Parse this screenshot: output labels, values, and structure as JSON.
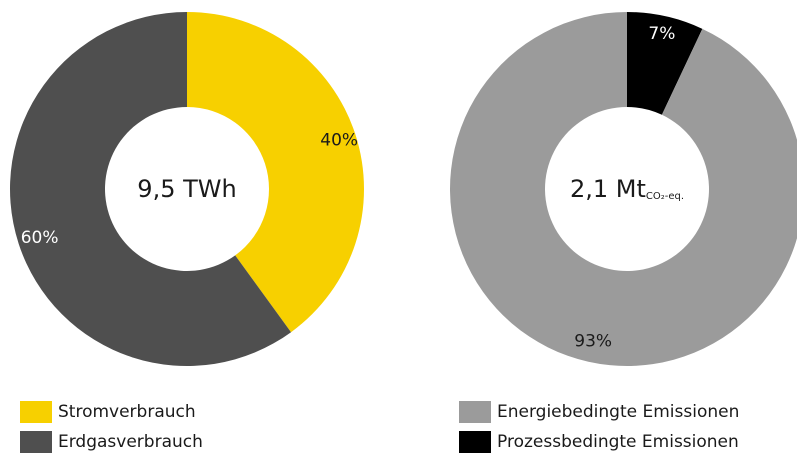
{
  "chart_data": [
    {
      "type": "pie",
      "style": "donut",
      "center_label": {
        "value": "9,5",
        "unit": "TWh"
      },
      "slices": [
        {
          "label": "Stromverbrauch",
          "value": 40,
          "value_label": "40%",
          "color": "#F7D000",
          "label_color": "#1a1a1a"
        },
        {
          "label": "Erdgasverbrauch",
          "value": 60,
          "value_label": "60%",
          "color": "#4F4F4F",
          "label_color": "#ffffff"
        }
      ],
      "legend": "bottom-left"
    },
    {
      "type": "pie",
      "style": "donut",
      "center_label": {
        "value": "2,1",
        "unit": "Mt",
        "unit_sub": "CO₂-eq."
      },
      "slices": [
        {
          "label": "Prozessbedingte Emissionen",
          "value": 7,
          "value_label": "7%",
          "color": "#000000",
          "label_color": "#ffffff"
        },
        {
          "label": "Energiebedingte Emissionen",
          "value": 93,
          "value_label": "93%",
          "color": "#9B9B9B",
          "label_color": "#1a1a1a"
        }
      ],
      "legend": "bottom-right"
    }
  ],
  "legend_left": [
    {
      "label": "Stromverbrauch",
      "color": "#F7D000"
    },
    {
      "label": "Erdgasverbrauch",
      "color": "#4F4F4F"
    }
  ],
  "legend_right": [
    {
      "label": "Energiebedingte Emissionen",
      "color": "#9B9B9B"
    },
    {
      "label": "Prozessbedingte Emissionen",
      "color": "#000000"
    }
  ]
}
